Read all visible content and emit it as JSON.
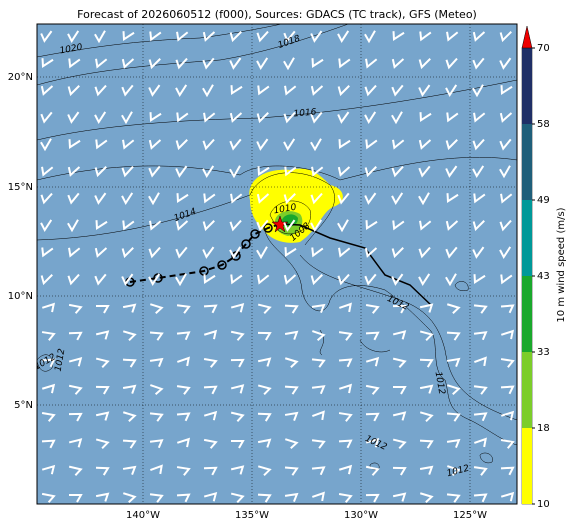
{
  "title": "Forecast of 2026060512 (f000), Sources: GDACS (TC track), GFS (Meteo)",
  "map": {
    "lat_labels": [
      "20°N",
      "15°N",
      "10°N",
      "5°N"
    ],
    "lon_labels": [
      "140°W",
      "135°W",
      "130°W",
      "125°W"
    ],
    "isobar_labels": [
      "1020",
      "1018",
      "1016",
      "1014",
      "1010",
      "1008",
      "1012",
      "1012",
      "1012",
      "1012",
      "1012",
      "1012"
    ]
  },
  "colorbar": {
    "title": "10 m wind speed (m/s)",
    "ticks": [
      10,
      18,
      33,
      43,
      49,
      58,
      70
    ]
  }
}
